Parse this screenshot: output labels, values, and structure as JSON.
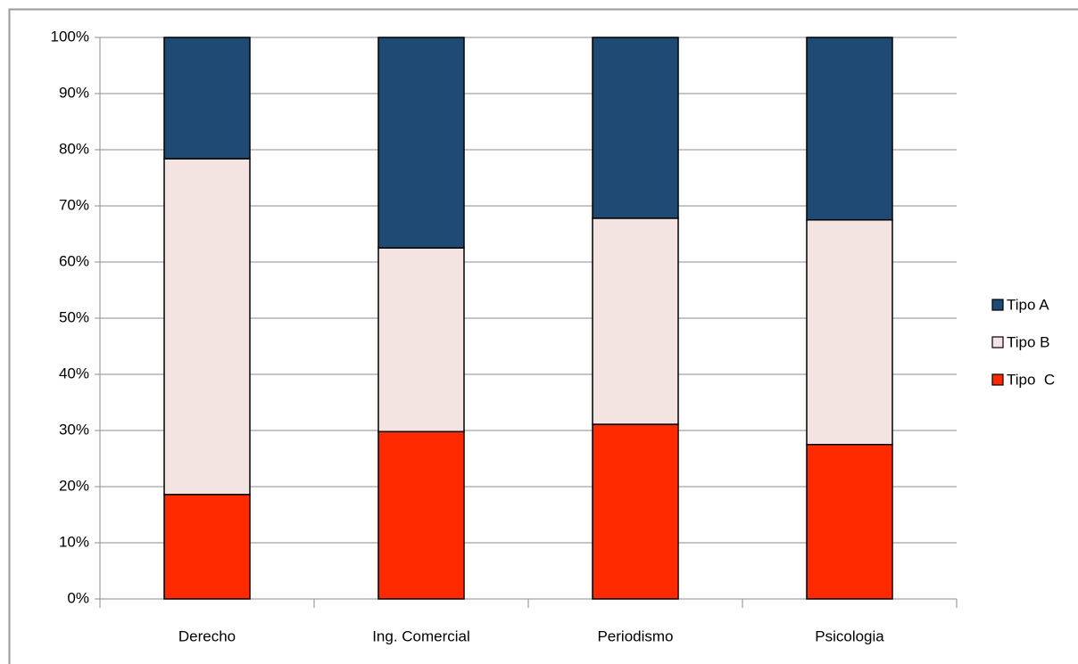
{
  "chart_data": {
    "type": "stacked_bar",
    "categories": [
      "Derecho",
      "Ing. Comercial",
      "Periodismo",
      "Psicologia"
    ],
    "series": [
      {
        "name": "Tipo A",
        "color": "#1f4a74",
        "values": [
          21.6,
          37.5,
          32.2,
          32.5
        ]
      },
      {
        "name": "Tipo B",
        "color": "#f3e3e1",
        "values": [
          59.8,
          32.7,
          36.7,
          40.0
        ]
      },
      {
        "name": "Tipo  C",
        "color": "#ff2a00",
        "values": [
          18.6,
          29.8,
          31.1,
          27.5
        ]
      }
    ],
    "ylim": [
      0,
      100
    ],
    "yticks": [
      {
        "value": 0,
        "label": "0%"
      },
      {
        "value": 10,
        "label": "10%"
      },
      {
        "value": 20,
        "label": "20%"
      },
      {
        "value": 30,
        "label": "30%"
      },
      {
        "value": 40,
        "label": "40%"
      },
      {
        "value": 50,
        "label": "50%"
      },
      {
        "value": 60,
        "label": "60%"
      },
      {
        "value": 70,
        "label": "70%"
      },
      {
        "value": 80,
        "label": "80%"
      },
      {
        "value": 90,
        "label": "90%"
      },
      {
        "value": 100,
        "label": "100%"
      }
    ],
    "grid": true,
    "legend": "right"
  }
}
